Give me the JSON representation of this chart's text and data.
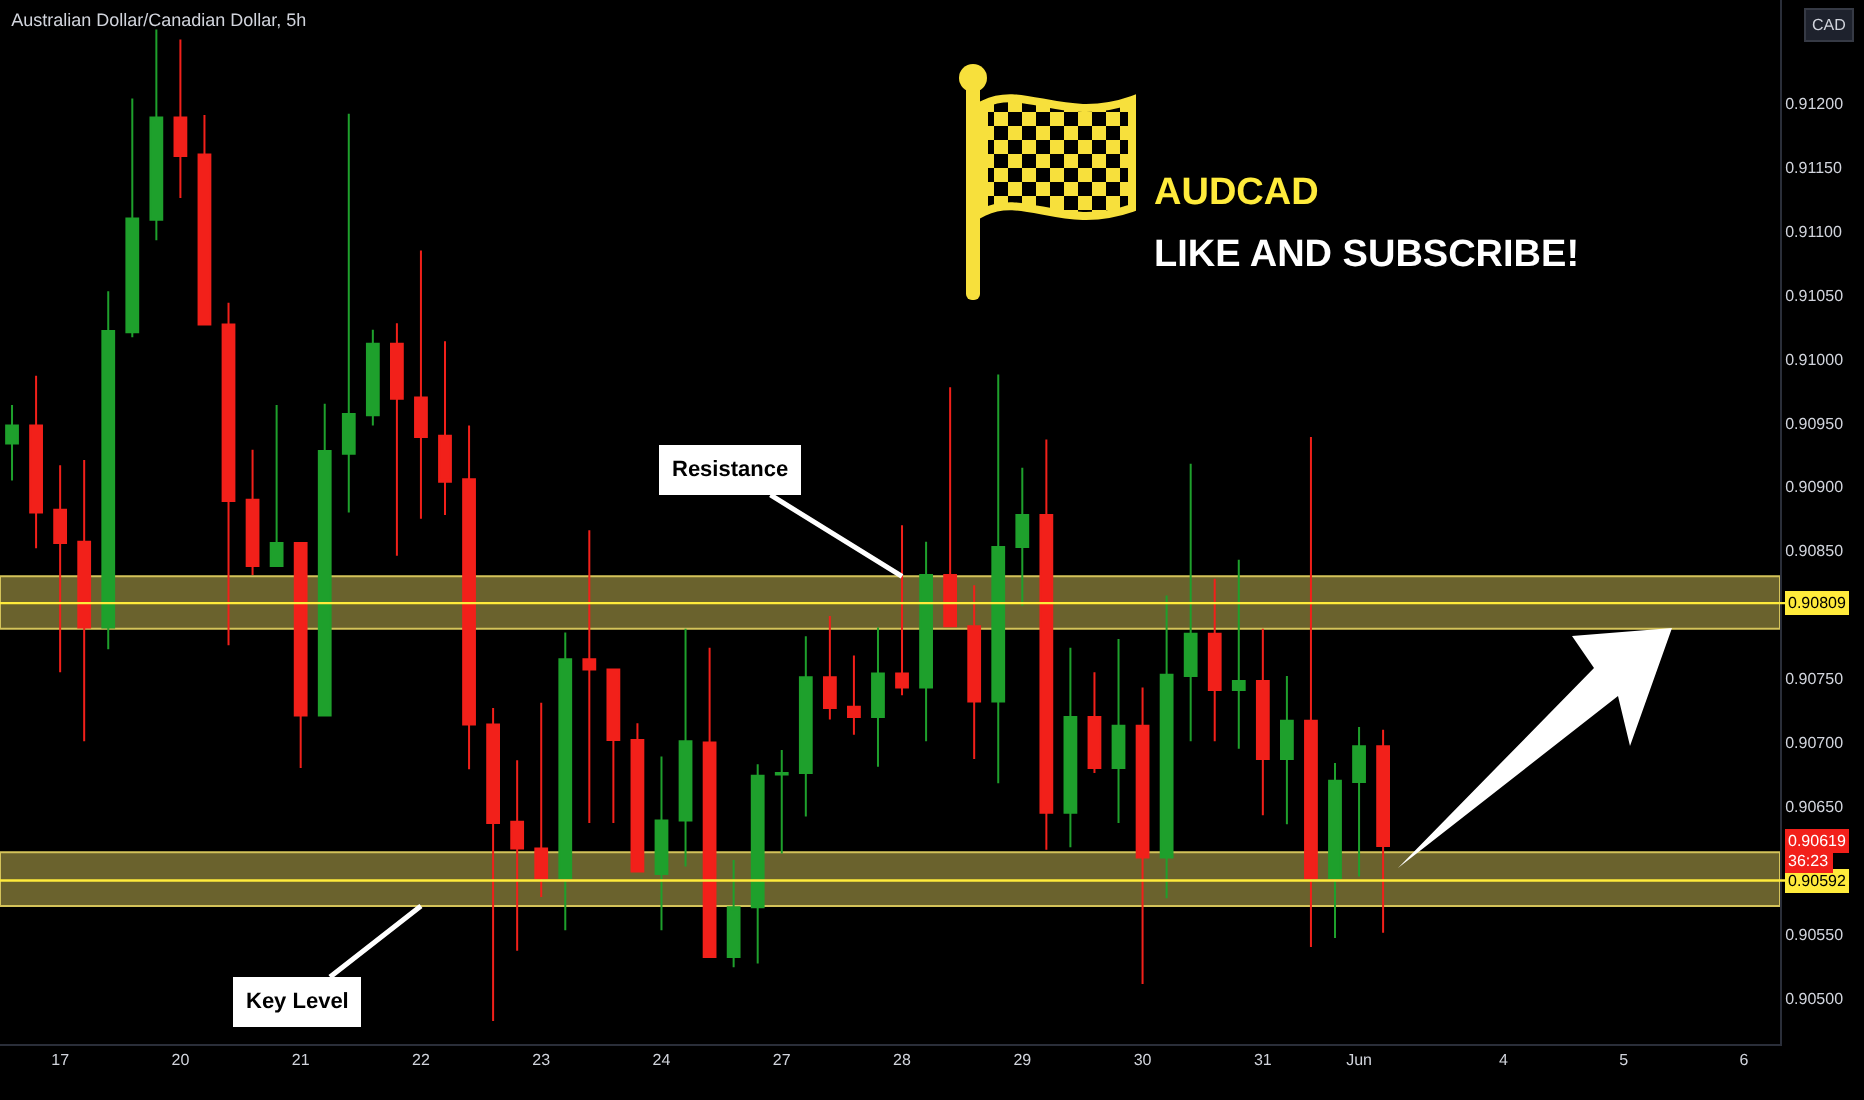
{
  "chart_data": {
    "type": "candlestick",
    "title": "Australian Dollar/Canadian Dollar, 5h",
    "ylabel": "CAD",
    "categories": [
      null,
      null,
      "17",
      null,
      null,
      null,
      null,
      "20",
      null,
      null,
      null,
      null,
      "21",
      null,
      null,
      null,
      null,
      "22",
      null,
      null,
      null,
      null,
      "23",
      null,
      null,
      null,
      null,
      "24",
      null,
      null,
      null,
      null,
      "27",
      null,
      null,
      null,
      null,
      "28",
      null,
      null,
      null,
      null,
      "29",
      null,
      null,
      null,
      null,
      "30",
      null,
      null,
      null,
      null,
      "31",
      null,
      null,
      null,
      "Jun",
      null,
      null,
      null,
      null,
      null,
      "4",
      null,
      null,
      null,
      null,
      "5",
      null,
      null,
      null,
      null,
      "6",
      null
    ],
    "ohlc": [
      [
        0.90934,
        0.90964,
        0.90905,
        0.90948
      ],
      [
        0.90948,
        0.90987,
        0.90852,
        0.9088
      ],
      [
        0.90882,
        0.90917,
        0.90755,
        0.90856
      ],
      [
        0.90857,
        0.90921,
        0.90701,
        0.9079
      ],
      [
        0.9079,
        0.91053,
        0.90773,
        0.91022
      ],
      [
        0.91021,
        0.91204,
        0.91017,
        0.9111
      ],
      [
        0.91109,
        0.91258,
        0.91093,
        0.91189
      ],
      [
        0.91189,
        0.9125,
        0.91126,
        0.91159
      ],
      [
        0.9116,
        0.91191,
        0.91027,
        0.91027
      ],
      [
        0.91027,
        0.91044,
        0.90776,
        0.90889
      ],
      [
        0.9089,
        0.90929,
        0.90831,
        0.90838
      ],
      [
        0.90838,
        0.90964,
        0.90838,
        0.90856
      ],
      [
        0.90856,
        0.90856,
        0.9068,
        0.90721
      ],
      [
        0.90721,
        0.90965,
        0.90721,
        0.90928
      ],
      [
        0.90926,
        0.91192,
        0.9088,
        0.90957
      ],
      [
        0.90956,
        0.91023,
        0.90948,
        0.91012
      ],
      [
        0.91012,
        0.91028,
        0.90846,
        0.90969
      ],
      [
        0.9097,
        0.91085,
        0.90875,
        0.90939
      ],
      [
        0.9094,
        0.91014,
        0.90878,
        0.90904
      ],
      [
        0.90906,
        0.90948,
        0.90679,
        0.90714
      ],
      [
        0.90714,
        0.90727,
        0.90482,
        0.90637
      ],
      [
        0.90638,
        0.90686,
        0.90537,
        0.90617
      ],
      [
        0.90617,
        0.90731,
        0.90579,
        0.90594
      ],
      [
        0.90594,
        0.90786,
        0.90553,
        0.90765
      ],
      [
        0.90765,
        0.90866,
        0.90637,
        0.90757
      ],
      [
        0.90757,
        0.90757,
        0.90637,
        0.90702
      ],
      [
        0.90702,
        0.90715,
        0.90599,
        0.90599
      ],
      [
        0.90597,
        0.90689,
        0.90553,
        0.90639
      ],
      [
        0.90639,
        0.90789,
        0.90603,
        0.90701
      ],
      [
        0.907,
        0.90774,
        0.90532,
        0.90532
      ],
      [
        0.90532,
        0.90608,
        0.90524,
        0.90571
      ],
      [
        0.90571,
        0.90683,
        0.90527,
        0.90674
      ],
      [
        0.90675,
        0.90694,
        0.90613,
        0.90676
      ],
      [
        0.90676,
        0.90783,
        0.90642,
        0.90751
      ],
      [
        0.90751,
        0.90799,
        0.90718,
        0.90727
      ],
      [
        0.90728,
        0.90768,
        0.90706,
        0.9072
      ],
      [
        0.9072,
        0.9079,
        0.90681,
        0.90754
      ],
      [
        0.90754,
        0.9087,
        0.90737,
        0.90743
      ],
      [
        0.90743,
        0.90857,
        0.90701,
        0.90831
      ],
      [
        0.90831,
        0.90978,
        0.90791,
        0.90791
      ],
      [
        0.90791,
        0.90823,
        0.90687,
        0.90732
      ],
      [
        0.90732,
        0.90988,
        0.90668,
        0.90853
      ],
      [
        0.90853,
        0.90915,
        0.90807,
        0.90878
      ],
      [
        0.90878,
        0.90937,
        0.90616,
        0.90645
      ],
      [
        0.90645,
        0.90774,
        0.90618,
        0.9072
      ],
      [
        0.9072,
        0.90755,
        0.90676,
        0.9068
      ],
      [
        0.9068,
        0.90781,
        0.90637,
        0.90713
      ],
      [
        0.90713,
        0.90743,
        0.90511,
        0.9061
      ],
      [
        0.9061,
        0.90815,
        0.90578,
        0.90753
      ],
      [
        0.90752,
        0.90918,
        0.90701,
        0.90785
      ],
      [
        0.90785,
        0.90828,
        0.90701,
        0.90741
      ],
      [
        0.90741,
        0.90843,
        0.90695,
        0.90748
      ],
      [
        0.90748,
        0.90789,
        0.90643,
        0.90687
      ],
      [
        0.90687,
        0.90752,
        0.90636,
        0.90717
      ],
      [
        0.90717,
        0.90939,
        0.9054,
        0.90594
      ],
      [
        0.90594,
        0.90684,
        0.90547,
        0.9067
      ],
      [
        0.90669,
        0.90712,
        0.90595,
        0.90697
      ],
      [
        0.90697,
        0.9071,
        0.90551,
        0.90619
      ],
      null,
      null,
      null,
      null,
      null,
      null,
      null,
      null,
      null,
      null,
      null,
      null,
      null,
      null,
      null,
      null
    ],
    "colors": [
      "#1ea02c",
      "#f2201a",
      "#f2201a",
      "#f2201a",
      "#1ea02c",
      "#1ea02c",
      "#1ea02c",
      "#f2201a",
      "#f2201a",
      "#f2201a",
      "#f2201a",
      "#1ea02c",
      "#f2201a",
      "#1ea02c",
      "#1ea02c",
      "#1ea02c",
      "#f2201a",
      "#f2201a",
      "#f2201a",
      "#f2201a",
      "#f2201a",
      "#f2201a",
      "#f2201a",
      "#1ea02c",
      "#f2201a",
      "#f2201a",
      "#f2201a",
      "#1ea02c",
      "#1ea02c",
      "#f2201a",
      "#1ea02c",
      "#1ea02c",
      "#1ea02c",
      "#1ea02c",
      "#f2201a",
      "#f2201a",
      "#1ea02c",
      "#f2201a",
      "#1ea02c",
      "#f2201a",
      "#f2201a",
      "#1ea02c",
      "#1ea02c",
      "#f2201a",
      "#1ea02c",
      "#f2201a",
      "#1ea02c",
      "#f2201a",
      "#1ea02c",
      "#1ea02c",
      "#f2201a",
      "#1ea02c",
      "#f2201a",
      "#1ea02c",
      "#f2201a",
      "#1ea02c",
      "#1ea02c",
      "#f2201a",
      null,
      null,
      null,
      null,
      null,
      null,
      null,
      null,
      null,
      null,
      null,
      null,
      null,
      null,
      null,
      null
    ],
    "ylim": [
      0.90464,
      0.91281
    ],
    "yticks": [
      {
        "value": 0.905,
        "label": "0.90500"
      },
      {
        "value": 0.9055,
        "label": "0.90550"
      },
      {
        "value": 0.9065,
        "label": "0.90650"
      },
      {
        "value": 0.907,
        "label": "0.90700"
      },
      {
        "value": 0.9075,
        "label": "0.90750"
      },
      {
        "value": 0.9085,
        "label": "0.90850"
      },
      {
        "value": 0.909,
        "label": "0.90900"
      },
      {
        "value": 0.9095,
        "label": "0.90950"
      },
      {
        "value": 0.91,
        "label": "0.91000"
      },
      {
        "value": 0.9105,
        "label": "0.91050"
      },
      {
        "value": 0.911,
        "label": "0.91100"
      },
      {
        "value": 0.9115,
        "label": "0.91150"
      },
      {
        "value": 0.912,
        "label": "0.91200"
      }
    ],
    "ref_lines": [
      {
        "axis": "y",
        "value": 0.90809,
        "label": "0.90809",
        "color": "#ffeb3b"
      },
      {
        "axis": "y",
        "value": 0.90592,
        "label": "0.90592",
        "color": "#ffeb3b"
      }
    ],
    "bands": [
      {
        "axis": "y",
        "from": 0.90789,
        "to": 0.9083,
        "color": "#d4c35a"
      },
      {
        "axis": "y",
        "from": 0.90572,
        "to": 0.90614,
        "color": "#d4c35a"
      }
    ],
    "annotations": [
      {
        "text": "Resistance",
        "x": "28",
        "y": 0.9083
      },
      {
        "text": "Key Level",
        "x": "22",
        "y": 0.90572
      },
      "AUDCAD",
      "LIKE AND SUBSCRIBE!",
      "0.90619",
      "36:23"
    ]
  }
}
